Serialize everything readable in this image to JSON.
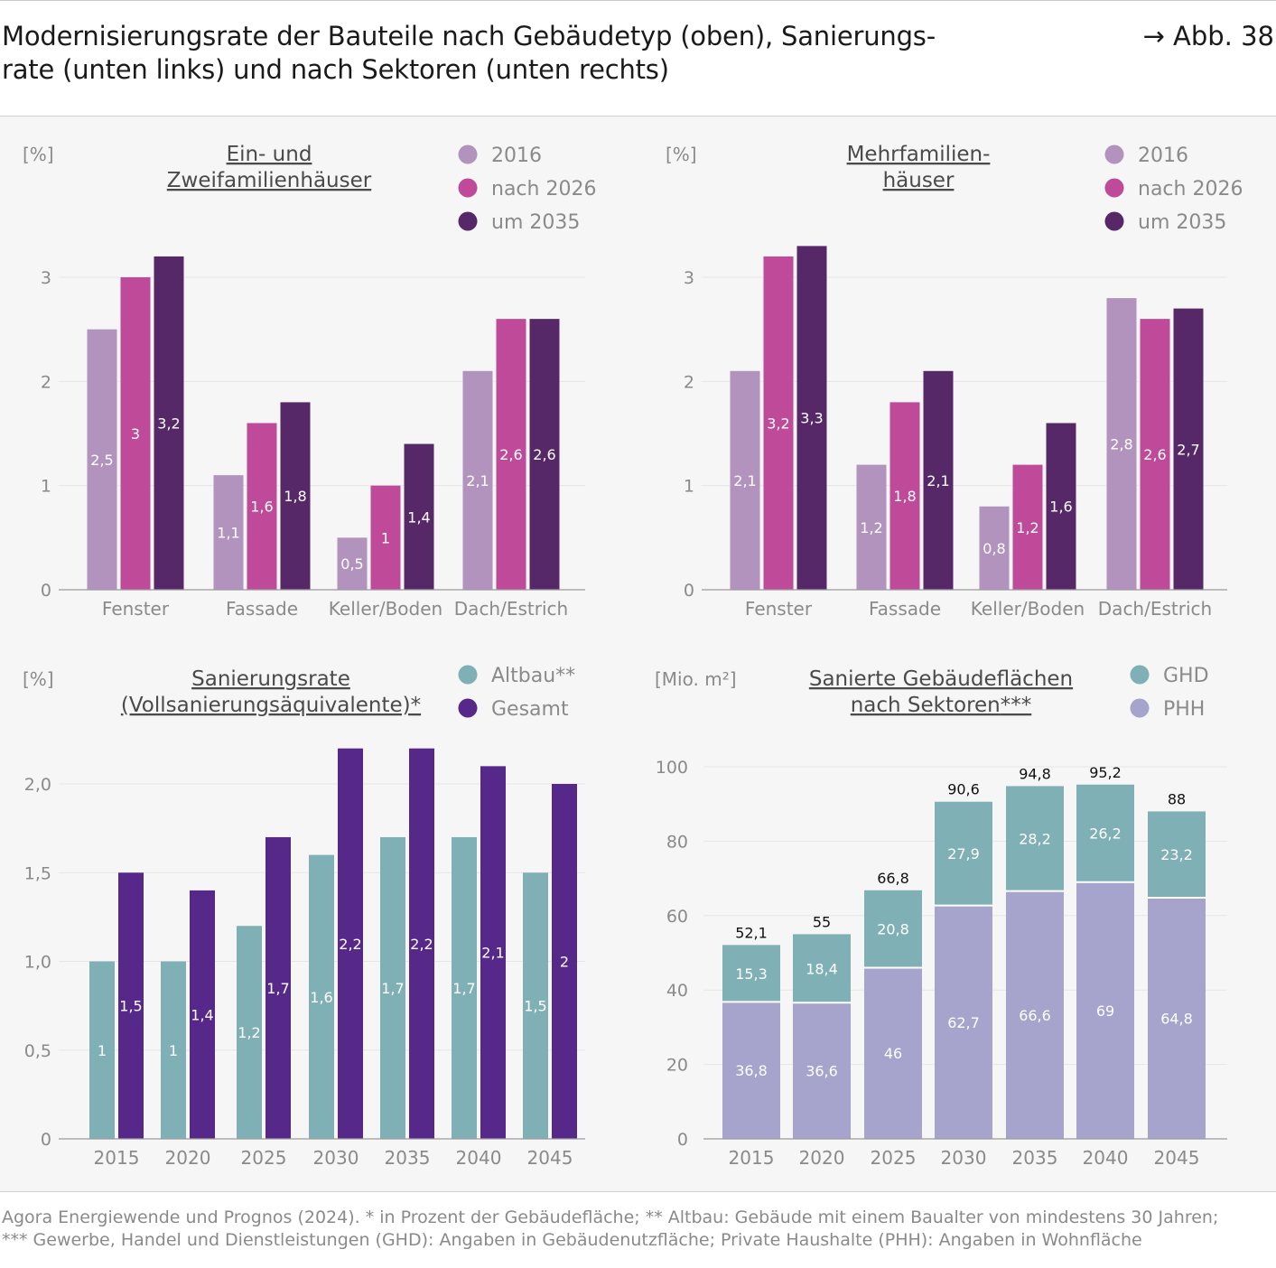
{
  "header": {
    "title_line1": "Modernisierungsrate der Bauteile nach Gebäudetyp (oben), Sanierungs-",
    "title_line2": "rate (unten links) und nach Sektoren (unten rechts)",
    "figure_ref": "→ Abb. 38"
  },
  "footer": {
    "line1": "Agora Energiewende und Prognos (2024). * in Prozent der Gebäudefläche; ** Altbau: Gebäude mit einem Baualter von mindestens 30 Jahren;",
    "line2": "*** Gewerbe, Handel und Dienstleistungen (GHD): Angaben in Gebäudenutzfläche; Private Haushalte (PHH): Angaben in Wohnfläche"
  },
  "colors": {
    "c2016": "#b293bd",
    "c2026": "#bf4a9a",
    "c2035": "#562868",
    "altbau": "#7fb0b6",
    "gesamt": "#55288a",
    "ghd": "#7fb0b6",
    "phh": "#a6a3cc"
  },
  "chart_data": [
    {
      "type": "bar",
      "title": "Ein- und Zweifamilienhäuser",
      "title_lines": [
        "Ein- und",
        "Zweifamilienhäuser"
      ],
      "unit": "[%]",
      "categories": [
        "Fenster",
        "Fassade",
        "Keller/Boden",
        "Dach/Estrich"
      ],
      "series": [
        {
          "name": "2016",
          "values": [
            2.5,
            1.1,
            0.5,
            2.1
          ],
          "labels": [
            "2,5",
            "1,1",
            "0,5",
            "2,1"
          ]
        },
        {
          "name": "nach 2026",
          "values": [
            3.0,
            1.6,
            1.0,
            2.6
          ],
          "labels": [
            "3",
            "1,6",
            "1",
            "2,6"
          ]
        },
        {
          "name": "um 2035",
          "values": [
            3.2,
            1.8,
            1.4,
            2.6
          ],
          "labels": [
            "3,2",
            "1,8",
            "1,4",
            "2,6"
          ]
        }
      ],
      "yticks": [
        0,
        1,
        2,
        3
      ],
      "ytick_labels": [
        "0",
        "1",
        "2",
        "3"
      ],
      "ylim": [
        0,
        3.3
      ]
    },
    {
      "type": "bar",
      "title": "Mehrfamilienhäuser",
      "title_lines": [
        "Mehrfamilien-",
        "häuser"
      ],
      "unit": "[%]",
      "categories": [
        "Fenster",
        "Fassade",
        "Keller/Boden",
        "Dach/Estrich"
      ],
      "series": [
        {
          "name": "2016",
          "values": [
            2.1,
            1.2,
            0.8,
            2.8
          ],
          "labels": [
            "2,1",
            "1,2",
            "0,8",
            "2,8"
          ]
        },
        {
          "name": "nach 2026",
          "values": [
            3.2,
            1.8,
            1.2,
            2.6
          ],
          "labels": [
            "3,2",
            "1,8",
            "1,2",
            "2,6"
          ]
        },
        {
          "name": "um 2035",
          "values": [
            3.3,
            2.1,
            1.6,
            2.7
          ],
          "labels": [
            "3,3",
            "2,1",
            "1,6",
            "2,7"
          ]
        }
      ],
      "yticks": [
        0,
        1,
        2,
        3
      ],
      "ytick_labels": [
        "0",
        "1",
        "2",
        "3"
      ],
      "ylim": [
        0,
        3.3
      ]
    },
    {
      "type": "bar",
      "title": "Sanierungsrate (Vollsanierungsäquivalente)*",
      "title_lines": [
        "Sanierungsrate",
        "(Vollsanierungsäquivalente)*"
      ],
      "unit": "[%]",
      "categories": [
        "2015",
        "2020",
        "2025",
        "2030",
        "2035",
        "2040",
        "2045"
      ],
      "series": [
        {
          "name": "Altbau**",
          "values": [
            1.0,
            1.0,
            1.2,
            1.6,
            1.7,
            1.7,
            1.5
          ],
          "labels": [
            "1",
            "1",
            "1,2",
            "1,6",
            "1,7",
            "1,7",
            "1,5"
          ]
        },
        {
          "name": "Gesamt",
          "values": [
            1.5,
            1.4,
            1.7,
            2.2,
            2.2,
            2.1,
            2.0
          ],
          "labels": [
            "1,5",
            "1,4",
            "1,7",
            "2,2",
            "2,2",
            "2,1",
            "2"
          ]
        }
      ],
      "yticks": [
        0,
        0.5,
        1.0,
        1.5,
        2.0
      ],
      "ytick_labels": [
        "0",
        "0,5",
        "1,0",
        "1,5",
        "2,0"
      ],
      "ylim": [
        0,
        2.2
      ]
    },
    {
      "type": "bar",
      "stacked": true,
      "title": "Sanierte Gebäudeflächen nach Sektoren***",
      "title_lines": [
        "Sanierte Gebäudeflächen",
        "nach Sektoren"
      ],
      "title_suffix": "***",
      "unit": "[Mio. m²]",
      "categories": [
        "2015",
        "2020",
        "2025",
        "2030",
        "2035",
        "2040",
        "2045"
      ],
      "series": [
        {
          "name": "PHH",
          "values": [
            36.8,
            36.6,
            46,
            62.7,
            66.6,
            69,
            64.8
          ],
          "labels": [
            "36,8",
            "36,6",
            "46",
            "62,7",
            "66,6",
            "69",
            "64,8"
          ]
        },
        {
          "name": "GHD",
          "values": [
            15.3,
            18.4,
            20.8,
            27.9,
            28.2,
            26.2,
            23.2
          ],
          "labels": [
            "15,3",
            "18,4",
            "20,8",
            "27,9",
            "28,2",
            "26,2",
            "23,2"
          ]
        }
      ],
      "totals": [
        52.1,
        55,
        66.8,
        90.6,
        94.8,
        95.2,
        88
      ],
      "total_labels": [
        "52,1",
        "55",
        "66,8",
        "90,6",
        "94,8",
        "95,2",
        "88"
      ],
      "legend_order": [
        "GHD",
        "PHH"
      ],
      "yticks": [
        0,
        20,
        40,
        60,
        80,
        100
      ],
      "ytick_labels": [
        "0",
        "20",
        "40",
        "60",
        "80",
        "100"
      ],
      "ylim": [
        0,
        100
      ]
    }
  ]
}
